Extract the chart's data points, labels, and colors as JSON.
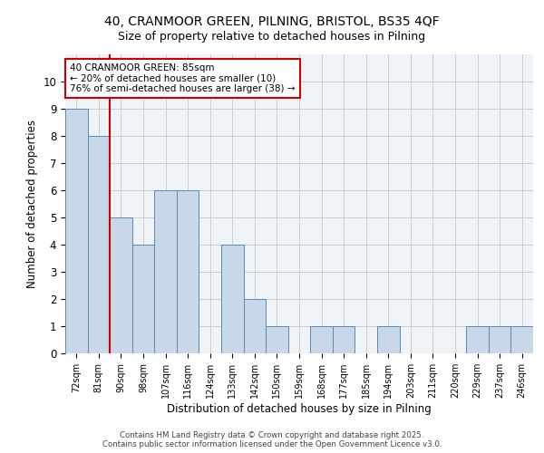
{
  "title_line1": "40, CRANMOOR GREEN, PILNING, BRISTOL, BS35 4QF",
  "title_line2": "Size of property relative to detached houses in Pilning",
  "xlabel": "Distribution of detached houses by size in Pilning",
  "ylabel": "Number of detached properties",
  "categories": [
    "72sqm",
    "81sqm",
    "90sqm",
    "98sqm",
    "107sqm",
    "116sqm",
    "124sqm",
    "133sqm",
    "142sqm",
    "150sqm",
    "159sqm",
    "168sqm",
    "177sqm",
    "185sqm",
    "194sqm",
    "203sqm",
    "211sqm",
    "220sqm",
    "229sqm",
    "237sqm",
    "246sqm"
  ],
  "values": [
    9,
    8,
    5,
    4,
    6,
    6,
    0,
    4,
    2,
    1,
    0,
    1,
    1,
    0,
    1,
    0,
    0,
    0,
    1,
    1,
    1
  ],
  "bar_color": "#c8d8e8",
  "bar_edge_color": "#5a8ab0",
  "annotation_text": "40 CRANMOOR GREEN: 85sqm\n← 20% of detached houses are smaller (10)\n76% of semi-detached houses are larger (38) →",
  "annotation_box_color": "#ffffff",
  "annotation_box_edge": "#cc0000",
  "grid_color": "#cccccc",
  "background_color": "#eef3f8",
  "red_line_color": "#cc0000",
  "footer_line1": "Contains HM Land Registry data © Crown copyright and database right 2025.",
  "footer_line2": "Contains public sector information licensed under the Open Government Licence v3.0.",
  "ylim": [
    0,
    11
  ],
  "yticks": [
    0,
    1,
    2,
    3,
    4,
    5,
    6,
    7,
    8,
    9,
    10,
    11
  ],
  "red_line_x": 1.5
}
